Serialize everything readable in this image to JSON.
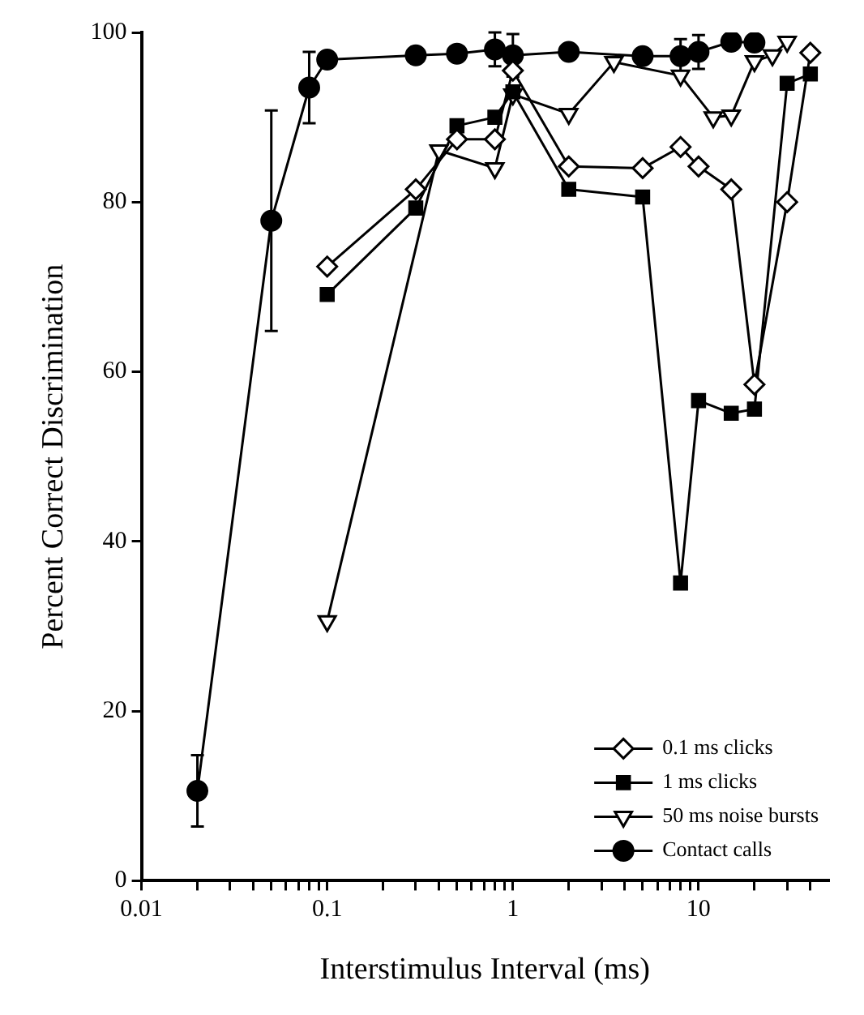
{
  "chart_data": {
    "type": "line",
    "xlabel": "Interstimulus Interval (ms)",
    "ylabel": "Percent Correct Discrimination",
    "log": "x",
    "xlim": [
      0.01,
      50
    ],
    "ylim": [
      0,
      100
    ],
    "yticks": [
      0,
      20,
      40,
      60,
      80,
      100
    ],
    "xticks": [
      0.01,
      {
        "value": 0.02,
        "label": null
      },
      {
        "value": 0.03,
        "label": null
      },
      {
        "value": 0.04,
        "label": null
      },
      {
        "value": 0.05,
        "label": null
      },
      {
        "value": 0.06,
        "label": null
      },
      {
        "value": 0.07,
        "label": null
      },
      {
        "value": 0.08,
        "label": null
      },
      {
        "value": 0.09,
        "label": null
      },
      0.1,
      {
        "value": 0.2,
        "label": null
      },
      {
        "value": 0.3,
        "label": null
      },
      {
        "value": 0.4,
        "label": null
      },
      {
        "value": 0.5,
        "label": null
      },
      {
        "value": 0.6,
        "label": null
      },
      {
        "value": 0.7,
        "label": null
      },
      {
        "value": 0.8,
        "label": null
      },
      {
        "value": 0.9,
        "label": null
      },
      1,
      {
        "value": 2,
        "label": null
      },
      {
        "value": 3,
        "label": null
      },
      {
        "value": 4,
        "label": null
      },
      {
        "value": 5,
        "label": null
      },
      {
        "value": 6,
        "label": null
      },
      {
        "value": 7,
        "label": null
      },
      {
        "value": 8,
        "label": null
      },
      {
        "value": 9,
        "label": null
      },
      10,
      {
        "value": 20,
        "label": null
      },
      {
        "value": 30,
        "label": null
      },
      {
        "value": 40,
        "label": null
      }
    ],
    "grid": false,
    "legend": "bottom right",
    "line_style": "solid",
    "series": [
      {
        "name": "0.1 ms clicks",
        "color": "#000000",
        "marker": "diamond",
        "x": [
          0.1,
          0.3,
          0.5,
          0.8,
          1,
          2,
          5,
          8,
          10,
          15,
          20,
          30,
          40
        ],
        "values": [
          72.4,
          81.5,
          87.4,
          87.4,
          95.5,
          84.2,
          84.0,
          86.5,
          84.2,
          81.5,
          58.5,
          80.0,
          97.6
        ]
      },
      {
        "name": "1 ms clicks",
        "color": "#000000",
        "marker": "square",
        "x": [
          0.1,
          0.3,
          0.5,
          0.8,
          1,
          2,
          5,
          8,
          10,
          15,
          20,
          30,
          40
        ],
        "values": [
          69.1,
          79.3,
          89.0,
          90.0,
          93.0,
          81.5,
          80.6,
          35.1,
          56.6,
          55.1,
          55.6,
          94.0,
          95.1
        ]
      },
      {
        "name": "50 ms noise bursts",
        "color": "#000000",
        "marker": "triangle",
        "x": [
          0.1,
          0.4,
          0.8,
          1,
          2,
          3.5,
          8,
          12,
          15,
          20,
          25,
          30
        ],
        "values": [
          30.6,
          86.1,
          84.0,
          92.7,
          90.4,
          96.5,
          94.9,
          90.0,
          90.2,
          96.6,
          97.3,
          98.9
        ]
      },
      {
        "name": "Contact calls",
        "color": "#000000",
        "marker": "circle",
        "x": [
          0.02,
          0.05,
          0.08,
          0.1,
          0.3,
          0.5,
          0.8,
          1,
          2,
          5,
          8,
          10,
          15,
          20
        ],
        "values": [
          10.6,
          77.8,
          93.5,
          96.8,
          97.3,
          97.5,
          98.0,
          97.3,
          97.7,
          97.2,
          97.2,
          97.7,
          98.9,
          98.8
        ],
        "errors": [
          4.2,
          13,
          4.2,
          null,
          null,
          null,
          2,
          2.5,
          null,
          null,
          2,
          2,
          null,
          null
        ]
      }
    ]
  }
}
